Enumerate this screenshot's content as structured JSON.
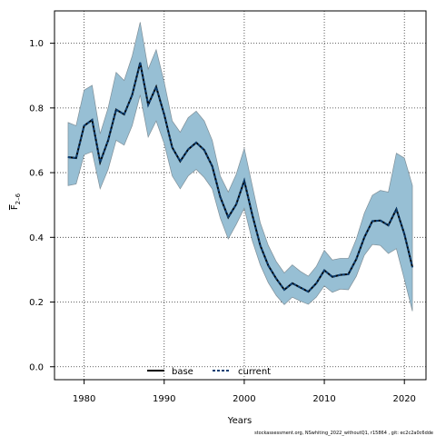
{
  "chart_data": {
    "type": "line",
    "xlabel": "Years",
    "ylabel": "F",
    "ylabel_sub": "2–6",
    "xlim": [
      1976.3,
      2022.7
    ],
    "ylim": [
      -0.04,
      1.1
    ],
    "x_ticks": [
      1980,
      1990,
      2000,
      2010,
      2020
    ],
    "y_ticks": [
      0.0,
      0.2,
      0.4,
      0.6,
      0.8,
      1.0
    ],
    "y_tick_labels": [
      "0.0",
      "0.2",
      "0.4",
      "0.6",
      "0.8",
      "1.0"
    ],
    "grid": true,
    "legend_position": "bottom",
    "colors": {
      "band": "#97bfd4",
      "band_edge": "#7f8f98",
      "base": "#000000",
      "current": "#0d3f73"
    },
    "x": [
      1978,
      1979,
      1980,
      1981,
      1982,
      1983,
      1984,
      1985,
      1986,
      1987,
      1988,
      1989,
      1990,
      1991,
      1992,
      1993,
      1994,
      1995,
      1996,
      1997,
      1998,
      1999,
      2000,
      2001,
      2002,
      2003,
      2004,
      2005,
      2006,
      2007,
      2008,
      2009,
      2010,
      2011,
      2012,
      2013,
      2014,
      2015,
      2016,
      2017,
      2018,
      2019,
      2020,
      2021
    ],
    "series": [
      {
        "name": "base",
        "values": [
          0.648,
          0.645,
          0.745,
          0.763,
          0.632,
          0.7,
          0.795,
          0.78,
          0.84,
          0.94,
          0.81,
          0.865,
          0.78,
          0.678,
          0.635,
          0.672,
          0.693,
          0.67,
          0.62,
          0.525,
          0.462,
          0.502,
          0.575,
          0.47,
          0.375,
          0.313,
          0.272,
          0.238,
          0.258,
          0.245,
          0.232,
          0.258,
          0.298,
          0.278,
          0.284,
          0.286,
          0.333,
          0.4,
          0.45,
          0.452,
          0.437,
          0.487,
          0.41,
          0.308
        ]
      },
      {
        "name": "current",
        "values": [
          0.648,
          0.645,
          0.745,
          0.763,
          0.632,
          0.7,
          0.795,
          0.78,
          0.84,
          0.94,
          0.81,
          0.865,
          0.78,
          0.678,
          0.635,
          0.672,
          0.693,
          0.67,
          0.62,
          0.525,
          0.462,
          0.502,
          0.575,
          0.47,
          0.375,
          0.313,
          0.272,
          0.238,
          0.258,
          0.245,
          0.232,
          0.258,
          0.298,
          0.278,
          0.284,
          0.286,
          0.333,
          0.4,
          0.45,
          0.452,
          0.437,
          0.487,
          0.41,
          0.308
        ]
      }
    ],
    "band": {
      "upper": [
        0.755,
        0.745,
        0.855,
        0.87,
        0.72,
        0.8,
        0.91,
        0.885,
        0.96,
        1.065,
        0.92,
        0.98,
        0.88,
        0.76,
        0.725,
        0.77,
        0.79,
        0.76,
        0.7,
        0.59,
        0.54,
        0.595,
        0.675,
        0.56,
        0.445,
        0.375,
        0.325,
        0.29,
        0.315,
        0.295,
        0.28,
        0.31,
        0.36,
        0.33,
        0.335,
        0.335,
        0.395,
        0.475,
        0.53,
        0.545,
        0.54,
        0.66,
        0.645,
        0.56
      ],
      "lower": [
        0.56,
        0.565,
        0.655,
        0.665,
        0.55,
        0.61,
        0.7,
        0.685,
        0.745,
        0.84,
        0.71,
        0.76,
        0.69,
        0.59,
        0.55,
        0.59,
        0.61,
        0.585,
        0.55,
        0.46,
        0.395,
        0.44,
        0.49,
        0.39,
        0.315,
        0.26,
        0.22,
        0.192,
        0.215,
        0.203,
        0.193,
        0.215,
        0.25,
        0.23,
        0.24,
        0.238,
        0.28,
        0.345,
        0.378,
        0.375,
        0.35,
        0.365,
        0.27,
        0.172
      ]
    }
  },
  "legend": {
    "base_label": "base",
    "current_label": "current"
  },
  "footer": "stockassessment.org, NSwhiting_2022_withoutQ1, r15864 , git: ec2c2a0c6dde"
}
